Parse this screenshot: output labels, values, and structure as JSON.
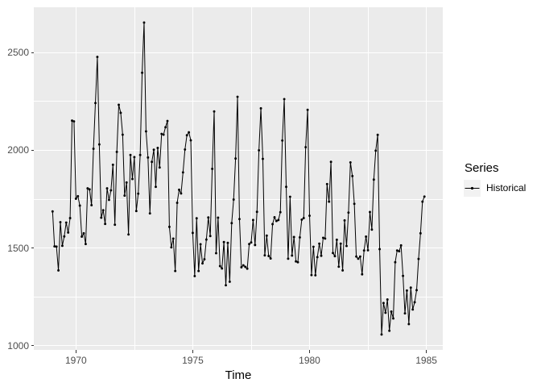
{
  "figure": {
    "background": "#FFFFFF",
    "panel_background": "#EBEBEB",
    "grid_color": "#FFFFFF",
    "axis_tick_color": "#333333",
    "axis_text_color": "#4D4D4D",
    "series_color": "#000000",
    "legend_key_background": "#F2F2F2"
  },
  "chart_data": {
    "type": "line",
    "title": "",
    "xlabel": "Time",
    "ylabel": "",
    "x_ticks": [
      1970,
      1975,
      1980,
      1985
    ],
    "x_minor_ticks": [
      1972.5,
      1977.5,
      1982.5
    ],
    "y_ticks": [
      1000,
      1500,
      2000,
      2500
    ],
    "y_minor_ticks": [
      1250,
      1750,
      2250
    ],
    "xlim": [
      1968.2,
      1985.72
    ],
    "ylim": [
      977,
      2734
    ],
    "grid": true,
    "marker": "point",
    "legend": {
      "title": "Series",
      "position": "right",
      "entries": [
        {
          "label": "Historical",
          "marker": "point-on-line"
        }
      ]
    },
    "series": [
      {
        "name": "Historical",
        "start_year": 1969,
        "frequency": 12,
        "values": [
          1687,
          1508,
          1507,
          1385,
          1632,
          1511,
          1559,
          1630,
          1579,
          1653,
          2152,
          2148,
          1752,
          1765,
          1717,
          1558,
          1575,
          1520,
          1805,
          1800,
          1719,
          2008,
          2242,
          2478,
          2030,
          1655,
          1693,
          1623,
          1805,
          1746,
          1795,
          1926,
          1619,
          1992,
          2233,
          2192,
          2080,
          1768,
          1835,
          1569,
          1976,
          1853,
          1965,
          1689,
          1778,
          1976,
          2397,
          2654,
          2097,
          1963,
          1677,
          1941,
          2003,
          1813,
          2012,
          1912,
          2084,
          2080,
          2118,
          2150,
          1608,
          1503,
          1548,
          1382,
          1731,
          1798,
          1779,
          1887,
          2004,
          2077,
          2092,
          2051,
          1577,
          1356,
          1652,
          1382,
          1519,
          1421,
          1442,
          1543,
          1656,
          1561,
          1905,
          2199,
          1473,
          1655,
          1407,
          1395,
          1530,
          1309,
          1526,
          1327,
          1627,
          1748,
          1958,
          2274,
          1648,
          1401,
          1411,
          1403,
          1394,
          1520,
          1528,
          1643,
          1515,
          1685,
          2000,
          2215,
          1956,
          1462,
          1563,
          1459,
          1446,
          1622,
          1657,
          1638,
          1643,
          1683,
          2050,
          2262,
          1813,
          1445,
          1762,
          1461,
          1556,
          1431,
          1427,
          1554,
          1645,
          1653,
          2016,
          2207,
          1665,
          1361,
          1506,
          1360,
          1453,
          1522,
          1460,
          1552,
          1548,
          1827,
          1737,
          1941,
          1474,
          1458,
          1542,
          1404,
          1522,
          1385,
          1641,
          1510,
          1681,
          1938,
          1868,
          1726,
          1456,
          1445,
          1456,
          1365,
          1487,
          1558,
          1488,
          1684,
          1594,
          1850,
          1998,
          2079,
          1494,
          1057,
          1218,
          1168,
          1236,
          1076,
          1174,
          1139,
          1427,
          1487,
          1483,
          1513,
          1357,
          1165,
          1282,
          1110,
          1297,
          1185,
          1222,
          1284,
          1444,
          1575,
          1737,
          1763
        ]
      }
    ]
  }
}
